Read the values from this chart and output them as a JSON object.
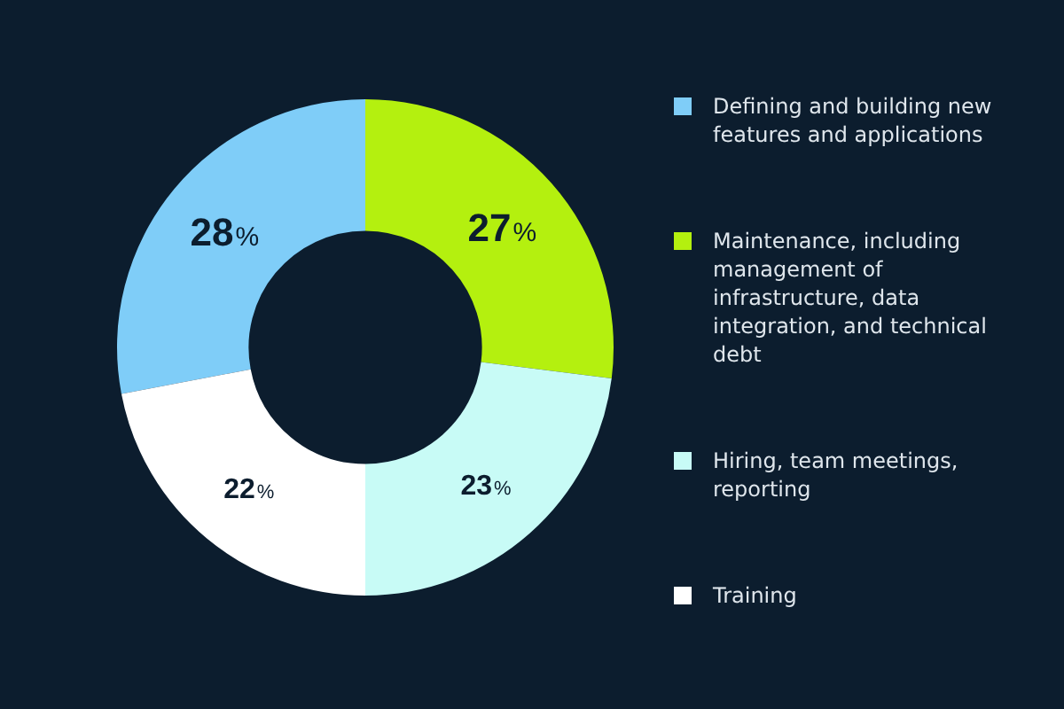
{
  "chart_data": {
    "type": "donut",
    "categories": [
      "Defining and building new features and applications",
      "Maintenance, including management of infrastructure, data integration, and technical debt",
      "Hiring, team meetings, reporting",
      "Training"
    ],
    "values": [
      28,
      27,
      23,
      22
    ],
    "colors": [
      "#7fcdf8",
      "#b4f00f",
      "#c8fbf6",
      "#ffffff"
    ],
    "value_labels": [
      "28%",
      "27%",
      "23%",
      "22%"
    ],
    "legend": "right"
  }
}
